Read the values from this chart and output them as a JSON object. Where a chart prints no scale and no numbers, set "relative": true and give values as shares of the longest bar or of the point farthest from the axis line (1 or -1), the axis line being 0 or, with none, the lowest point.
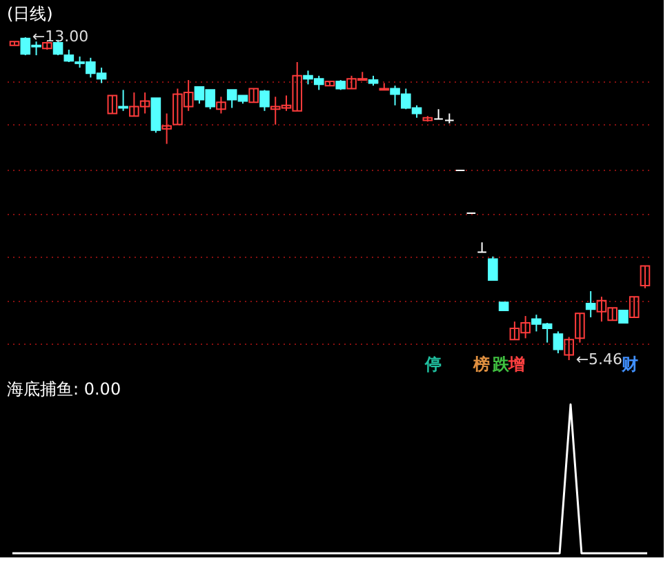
{
  "chart_data": [
    {
      "type": "candlestick",
      "title": "(日线)",
      "categories": [
        null,
        null,
        null,
        null,
        null,
        null,
        null,
        null,
        null,
        null,
        null,
        null,
        null,
        null,
        null,
        null,
        null,
        null,
        null,
        null,
        null,
        null,
        null,
        null,
        null,
        null,
        null,
        null,
        null,
        null,
        null,
        null,
        null,
        null,
        null,
        null,
        null,
        null,
        null,
        null,
        null,
        null,
        null,
        null,
        null,
        null,
        null,
        null,
        null,
        null,
        null,
        null,
        null,
        null,
        null,
        null,
        null,
        null,
        null
      ],
      "ohlc": [
        [
          12.81,
          12.9,
          12.81,
          12.9
        ],
        [
          12.97,
          13.0,
          12.58,
          12.61
        ],
        [
          12.81,
          12.9,
          12.58,
          12.78
        ],
        [
          12.74,
          12.9,
          12.71,
          12.87
        ],
        [
          12.87,
          12.94,
          12.58,
          12.61
        ],
        [
          12.58,
          12.71,
          12.42,
          12.45
        ],
        [
          12.42,
          12.55,
          12.29,
          12.39
        ],
        [
          12.42,
          12.52,
          12.06,
          12.16
        ],
        [
          12.16,
          12.29,
          11.93,
          12.03
        ],
        [
          11.22,
          11.64,
          11.22,
          11.64
        ],
        [
          11.38,
          11.77,
          11.28,
          11.35
        ],
        [
          11.16,
          11.71,
          11.16,
          11.38
        ],
        [
          11.38,
          11.71,
          11.22,
          11.51
        ],
        [
          11.58,
          11.58,
          10.77,
          10.83
        ],
        [
          10.86,
          11.22,
          10.51,
          10.93
        ],
        [
          10.96,
          11.8,
          10.96,
          11.67
        ],
        [
          11.38,
          12.0,
          11.28,
          11.71
        ],
        [
          11.84,
          11.84,
          11.45,
          11.54
        ],
        [
          11.77,
          11.77,
          11.32,
          11.38
        ],
        [
          11.32,
          11.61,
          11.22,
          11.48
        ],
        [
          11.77,
          11.77,
          11.35,
          11.54
        ],
        [
          11.64,
          11.64,
          11.45,
          11.51
        ],
        [
          11.48,
          11.8,
          11.48,
          11.8
        ],
        [
          11.74,
          11.77,
          11.28,
          11.38
        ],
        [
          11.32,
          11.61,
          10.96,
          11.38
        ],
        [
          11.35,
          11.64,
          11.28,
          11.41
        ],
        [
          11.28,
          12.42,
          11.28,
          12.1
        ],
        [
          12.1,
          12.22,
          11.9,
          12.03
        ],
        [
          12.03,
          12.1,
          11.77,
          11.9
        ],
        [
          11.87,
          11.97,
          11.87,
          11.97
        ],
        [
          11.97,
          12.0,
          11.77,
          11.8
        ],
        [
          11.8,
          12.1,
          11.8,
          12.03
        ],
        [
          12.0,
          12.19,
          12.0,
          12.03
        ],
        [
          12.0,
          12.1,
          11.87,
          11.93
        ],
        [
          11.77,
          11.93,
          11.77,
          11.8
        ],
        [
          11.8,
          11.87,
          11.41,
          11.67
        ],
        [
          11.67,
          11.8,
          11.32,
          11.35
        ],
        [
          11.35,
          11.41,
          11.12,
          11.22
        ],
        [
          11.06,
          11.16,
          11.03,
          11.12
        ],
        [
          11.09,
          11.32,
          11.09,
          11.09
        ],
        [
          11.06,
          11.22,
          10.99,
          11.06
        ],
        [
          9.89,
          9.89,
          9.89,
          9.89
        ],
        [
          8.89,
          8.89,
          8.89,
          8.89
        ],
        [
          7.98,
          8.21,
          7.98,
          7.98
        ],
        [
          7.82,
          7.88,
          7.33,
          7.33
        ],
        [
          6.81,
          6.81,
          6.62,
          6.62
        ],
        [
          5.94,
          6.36,
          5.94,
          6.2
        ],
        [
          6.1,
          6.49,
          5.97,
          6.33
        ],
        [
          6.42,
          6.52,
          6.13,
          6.3
        ],
        [
          6.3,
          6.33,
          5.87,
          6.2
        ],
        [
          6.07,
          6.13,
          5.62,
          5.71
        ],
        [
          5.58,
          6.0,
          5.46,
          5.94
        ],
        [
          5.97,
          6.55,
          5.87,
          6.55
        ],
        [
          6.78,
          7.07,
          6.46,
          6.65
        ],
        [
          6.59,
          6.94,
          6.36,
          6.85
        ],
        [
          6.39,
          6.68,
          6.39,
          6.68
        ],
        [
          6.62,
          6.62,
          6.33,
          6.33
        ],
        [
          6.46,
          6.94,
          6.46,
          6.94
        ],
        [
          7.2,
          7.66,
          7.14,
          7.66
        ]
      ],
      "colors": [
        "#ff3c3c",
        "#54ffff",
        "#54ffff",
        "#ff3c3c",
        "#54ffff",
        "#54ffff",
        "#54ffff",
        "#54ffff",
        "#54ffff",
        "#ff3c3c",
        "#54ffff",
        "#ff3c3c",
        "#ff3c3c",
        "#54ffff",
        "#ff3c3c",
        "#ff3c3c",
        "#ff3c3c",
        "#54ffff",
        "#54ffff",
        "#ff3c3c",
        "#54ffff",
        "#54ffff",
        "#ff3c3c",
        "#54ffff",
        "#ff3c3c",
        "#ff3c3c",
        "#ff3c3c",
        "#54ffff",
        "#54ffff",
        "#ff3c3c",
        "#54ffff",
        "#ff3c3c",
        "#ff3c3c",
        "#54ffff",
        "#ff3c3c",
        "#54ffff",
        "#54ffff",
        "#54ffff",
        "#ff3c3c",
        "#ffffff",
        "#ffffff",
        "#ffffff",
        "#ffffff",
        "#ffffff",
        "#54ffff",
        "#54ffff",
        "#ff3c3c",
        "#ff3c3c",
        "#54ffff",
        "#54ffff",
        "#54ffff",
        "#ff3c3c",
        "#ff3c3c",
        "#54ffff",
        "#ff3c3c",
        "#ff3c3c",
        "#54ffff",
        "#ff3c3c",
        "#ff3c3c"
      ],
      "yticks": [
        {
          "value": 11.97,
          "label": null
        },
        {
          "value": 10.96,
          "label": null
        },
        {
          "value": 9.92,
          "label": null
        },
        {
          "value": 8.89,
          "label": null
        },
        {
          "value": 7.88,
          "label": null
        },
        {
          "value": 6.85,
          "label": null
        },
        {
          "value": 5.84,
          "label": null
        }
      ],
      "grid": "y",
      "tick_labels": false,
      "annotations": [
        "←13.00",
        "←5.46",
        "停",
        "榜",
        "跌",
        "增",
        "财"
      ]
    },
    {
      "type": "line",
      "title": "海底捕鱼: 0.00",
      "relative": true,
      "tick_labels": false,
      "categories": [
        null,
        null,
        null,
        null,
        null,
        null,
        null,
        null,
        null,
        null,
        null,
        null,
        null,
        null,
        null,
        null,
        null,
        null,
        null,
        null,
        null,
        null,
        null,
        null,
        null,
        null,
        null,
        null,
        null,
        null,
        null,
        null,
        null,
        null,
        null,
        null,
        null,
        null,
        null,
        null,
        null,
        null,
        null,
        null,
        null,
        null,
        null,
        null,
        null,
        null,
        null,
        null,
        null,
        null,
        null,
        null,
        null,
        null,
        null
      ],
      "series": [
        {
          "color": "#ffffff",
          "values": [
            0,
            0,
            0,
            0,
            0,
            0,
            0,
            0,
            0,
            0,
            0,
            0,
            0,
            0,
            0,
            0,
            0,
            0,
            0,
            0,
            0,
            0,
            0,
            0,
            0,
            0,
            0,
            0,
            0,
            0,
            0,
            0,
            0,
            0,
            0,
            0,
            0,
            0,
            0,
            0,
            0,
            0,
            0,
            0,
            0,
            0,
            0,
            0,
            0,
            0,
            0,
            1,
            0,
            0,
            0,
            0,
            0,
            0,
            0
          ]
        }
      ]
    }
  ]
}
